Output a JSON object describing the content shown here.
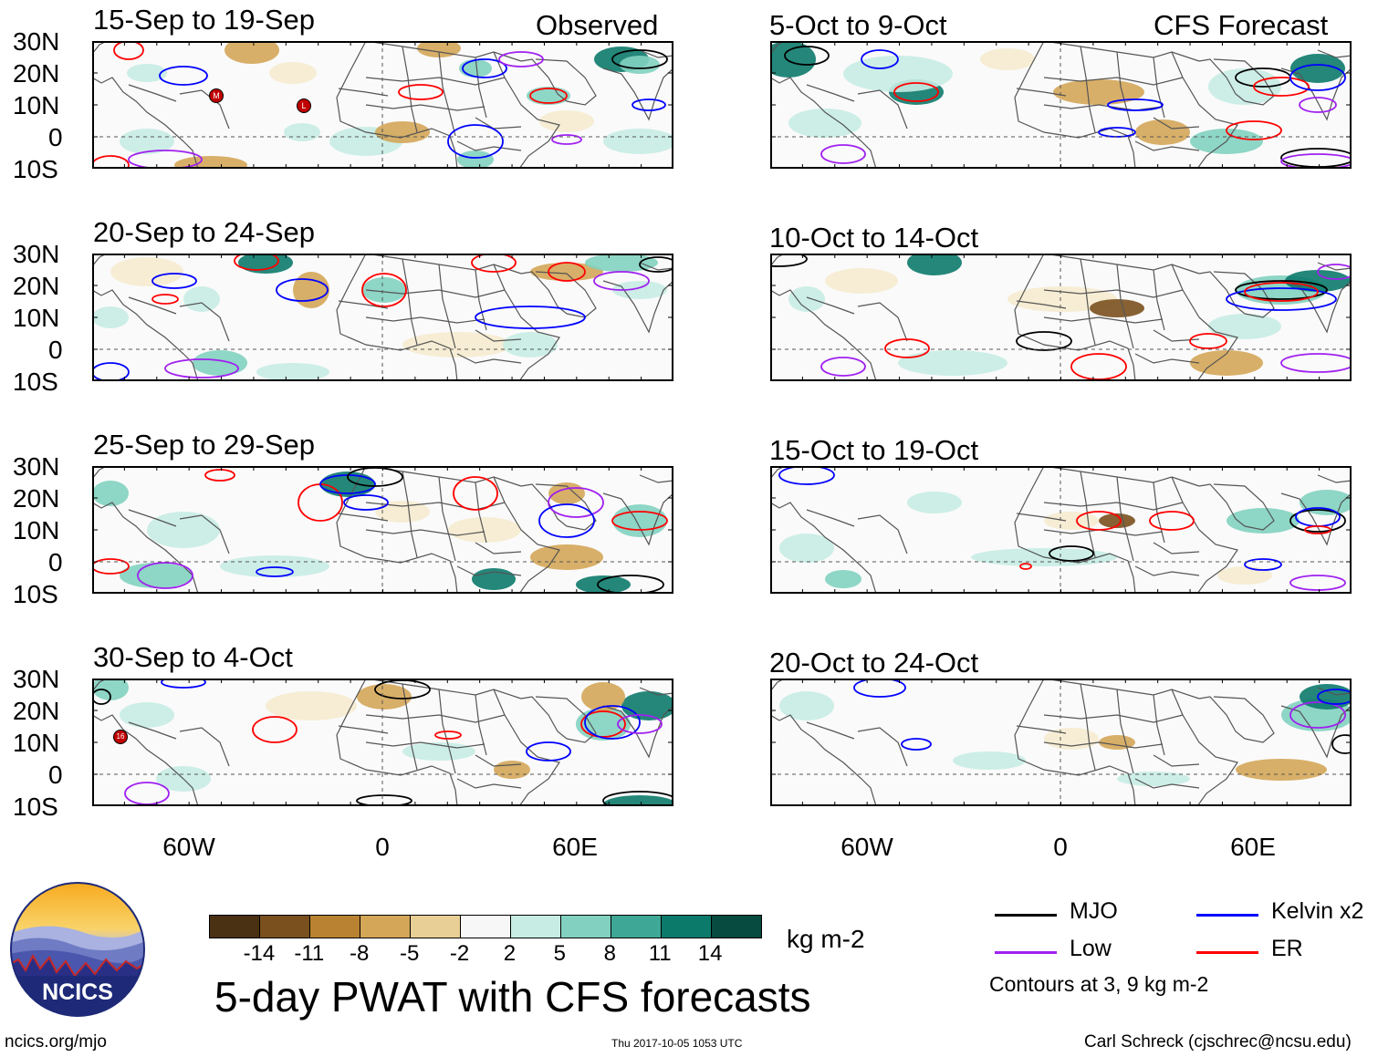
{
  "columns": {
    "left_header": "Observed",
    "right_header": "CFS Forecast"
  },
  "panels": {
    "obs": [
      {
        "period": "15-Sep to 19-Sep"
      },
      {
        "period": "20-Sep to 24-Sep"
      },
      {
        "period": "25-Sep to 29-Sep"
      },
      {
        "period": "30-Sep to 4-Oct"
      }
    ],
    "fcst": [
      {
        "period": "5-Oct to 9-Oct"
      },
      {
        "period": "10-Oct to 14-Oct"
      },
      {
        "period": "15-Oct to 19-Oct"
      },
      {
        "period": "20-Oct to 24-Oct"
      }
    ]
  },
  "axes": {
    "lat_labels": [
      "30N",
      "20N",
      "10N",
      "0",
      "10S"
    ],
    "lon_labels": [
      "60W",
      "0",
      "60E"
    ]
  },
  "storm_markers": [
    "M",
    "L",
    "16"
  ],
  "colorbar": {
    "ticks": [
      "-14",
      "-11",
      "-8",
      "-5",
      "-2",
      "2",
      "5",
      "8",
      "11",
      "14"
    ],
    "colors": [
      "#4a3113",
      "#7a501e",
      "#b98232",
      "#d4a658",
      "#e8cf96",
      "#f5ebcf",
      "#f7f7f7",
      "#c6ece3",
      "#82d1c0",
      "#3fa795",
      "#0c7a6b",
      "#074a3f"
    ],
    "units": "kg m-2"
  },
  "legend": {
    "items": [
      {
        "label": "MJO",
        "color": "#000000"
      },
      {
        "label": "Kelvin x2",
        "color": "#0000ff"
      },
      {
        "label": "Low",
        "color": "#a020f0"
      },
      {
        "label": "ER",
        "color": "#ff0000"
      }
    ],
    "note": "Contours at 3, 9 kg m-2"
  },
  "title": "5-day PWAT with CFS forecasts",
  "logo_text": "NCICS",
  "footer": {
    "left": "ncics.org/mjo",
    "center": "Thu 2017-10-05 1053 UTC",
    "right": "Carl Schreck (cjschrec@ncsu.edu)"
  }
}
